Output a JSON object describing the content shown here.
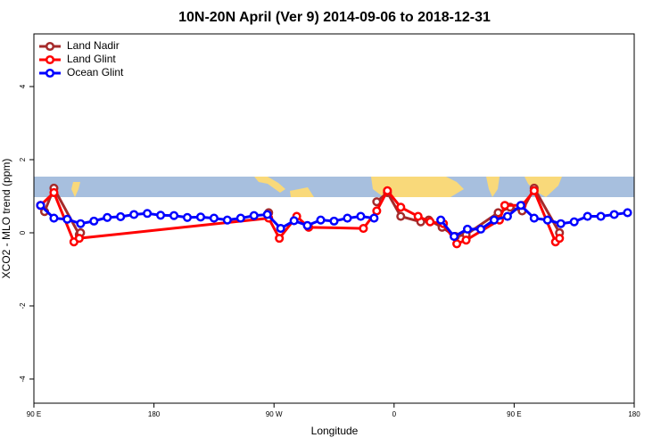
{
  "chart_data": {
    "type": "line",
    "title": "10N-20N April (Ver 9)   2014-09-06 to 2018-12-31",
    "xlabel": "Longitude",
    "ylabel": "XCO2 - MLO trend (ppm)",
    "xlim": [
      90,
      540
    ],
    "ylim": [
      -4.66,
      5.44
    ],
    "xticks": [
      {
        "value": 90,
        "label": "90 E"
      },
      180,
      {
        "value": 270,
        "label": "90 W"
      },
      {
        "value": 360,
        "label": "0"
      },
      {
        "value": 450,
        "label": "90 E"
      },
      {
        "value": 540,
        "label": "180"
      }
    ],
    "yticks": [
      -4,
      -2,
      0,
      2,
      4
    ],
    "legend": "top-left",
    "series": [
      {
        "name": "Land Nadir",
        "color": "#a52a2a",
        "x": [
          95,
          98,
          105,
          124,
          125,
          258,
          266,
          272,
          347,
          355,
          365,
          380,
          386,
          396,
          406,
          414,
          438,
          447,
          456,
          465,
          484
        ],
        "values": [
          0.75,
          0.58,
          1.22,
          -0.05,
          0.0,
          null,
          0.55,
          null,
          0.85,
          1.1,
          0.45,
          0.3,
          0.35,
          0.15,
          -0.1,
          -0.05,
          0.55,
          0.7,
          0.6,
          1.22,
          0.0
        ]
      },
      {
        "name": "Land Glint",
        "color": "#ff0000",
        "x": [
          95,
          105,
          120,
          124,
          266,
          274,
          287,
          296,
          337,
          347,
          355,
          365,
          378,
          387,
          397,
          407,
          414,
          439,
          443,
          456,
          465,
          481,
          484
        ],
        "values": [
          0.75,
          1.1,
          -0.25,
          -0.15,
          0.4,
          -0.15,
          0.45,
          0.15,
          0.12,
          0.6,
          1.15,
          0.7,
          0.45,
          0.3,
          0.25,
          -0.3,
          -0.2,
          0.35,
          0.75,
          0.75,
          1.15,
          -0.25,
          -0.15
        ]
      },
      {
        "name": "Ocean Glint",
        "color": "#0000ff",
        "x": [
          95,
          105,
          115,
          125,
          135,
          145,
          155,
          165,
          175,
          185,
          195,
          205,
          215,
          225,
          235,
          245,
          255,
          265,
          275,
          285,
          295,
          305,
          315,
          325,
          335,
          345,
          355,
          395,
          405,
          415,
          425,
          435,
          445,
          455,
          465,
          475,
          485,
          495,
          505,
          515,
          525,
          535
        ],
        "values": [
          0.75,
          0.4,
          0.37,
          0.25,
          0.32,
          0.42,
          0.44,
          0.5,
          0.53,
          0.48,
          0.47,
          0.42,
          0.43,
          0.4,
          0.35,
          0.4,
          0.47,
          0.5,
          0.12,
          0.33,
          0.2,
          0.35,
          0.32,
          0.4,
          0.45,
          0.4,
          null,
          0.35,
          -0.1,
          0.1,
          0.1,
          0.35,
          0.45,
          0.75,
          0.4,
          0.35,
          0.25,
          0.3,
          0.45,
          0.45,
          0.5,
          0.55
        ]
      }
    ]
  }
}
